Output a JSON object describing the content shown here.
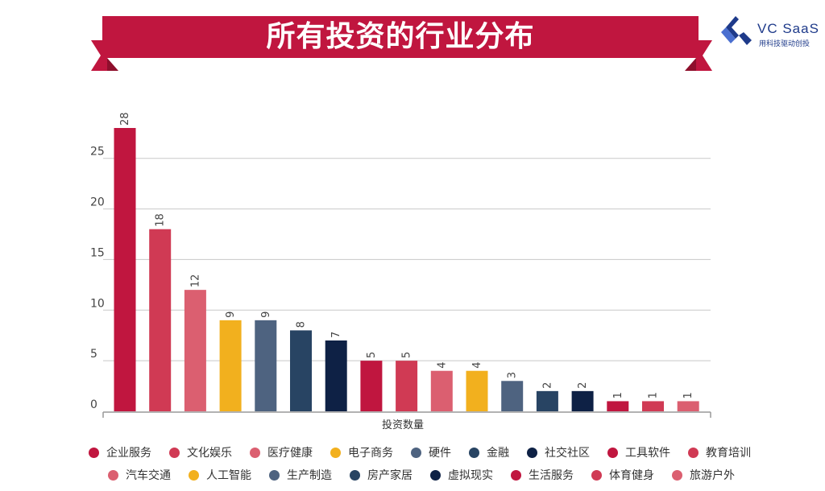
{
  "page": {
    "title": "所有投资的行业分布"
  },
  "logo": {
    "text": "VC SaaS",
    "subtitle": "用科技驱动创投"
  },
  "chart_data": {
    "type": "bar",
    "title": "所有投资的行业分布",
    "xlabel": "投资数量",
    "ylabel": "",
    "ylim": [
      0,
      30
    ],
    "yticks": [
      0,
      5,
      10,
      15,
      20,
      25
    ],
    "grid": true,
    "legend": "bottom",
    "categories": [
      "企业服务",
      "文化娱乐",
      "医疗健康",
      "电子商务",
      "硬件",
      "金融",
      "社交社区",
      "工具软件",
      "教育培训",
      "汽车交通",
      "人工智能",
      "生产制造",
      "房产家居",
      "虚拟现实",
      "生活服务",
      "体育健身",
      "旅游户外"
    ],
    "values": [
      28,
      18,
      12,
      9,
      9,
      8,
      7,
      5,
      5,
      4,
      4,
      3,
      2,
      2,
      1,
      1,
      1
    ],
    "colors": [
      "#c0163f",
      "#d03a54",
      "#db5f70",
      "#f2b01e",
      "#4e6380",
      "#284463",
      "#0e2145",
      "#c0163f",
      "#d03a54",
      "#db5f70",
      "#f2b01e",
      "#4e6380",
      "#284463",
      "#0e2145",
      "#c0163f",
      "#d03a54",
      "#db5f70"
    ]
  },
  "theme": {
    "banner": "#c0163f",
    "banner_dark": "#8e0f2c",
    "axis": "#999999",
    "grid": "#c8c8c8"
  }
}
